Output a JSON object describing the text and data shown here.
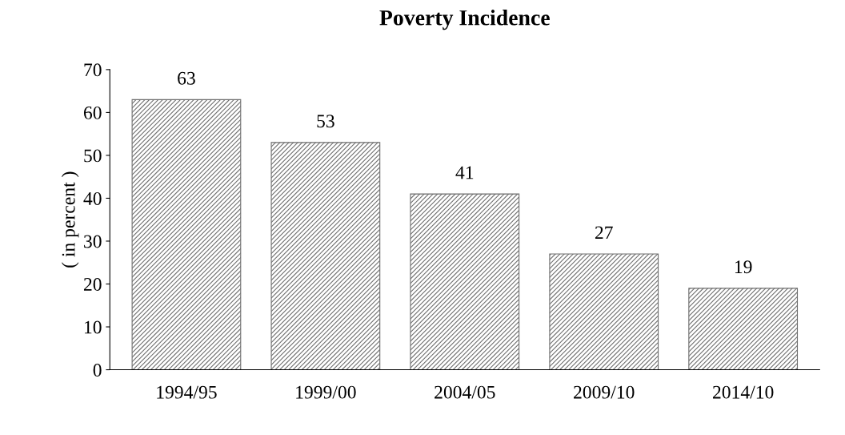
{
  "chart_data": {
    "type": "bar",
    "title": "Poverty Incidence",
    "ylabel": "( in percent )",
    "categories": [
      "1994/95",
      "1999/00",
      "2004/05",
      "2009/10",
      "2014/10"
    ],
    "values": [
      63,
      53,
      41,
      27,
      19
    ],
    "color": "#6e6e6e",
    "ylim": [
      0,
      70
    ],
    "yticks": [
      0,
      10,
      20,
      30,
      40,
      50,
      60,
      70
    ],
    "grid": false,
    "legend": false,
    "data_labels": true
  }
}
